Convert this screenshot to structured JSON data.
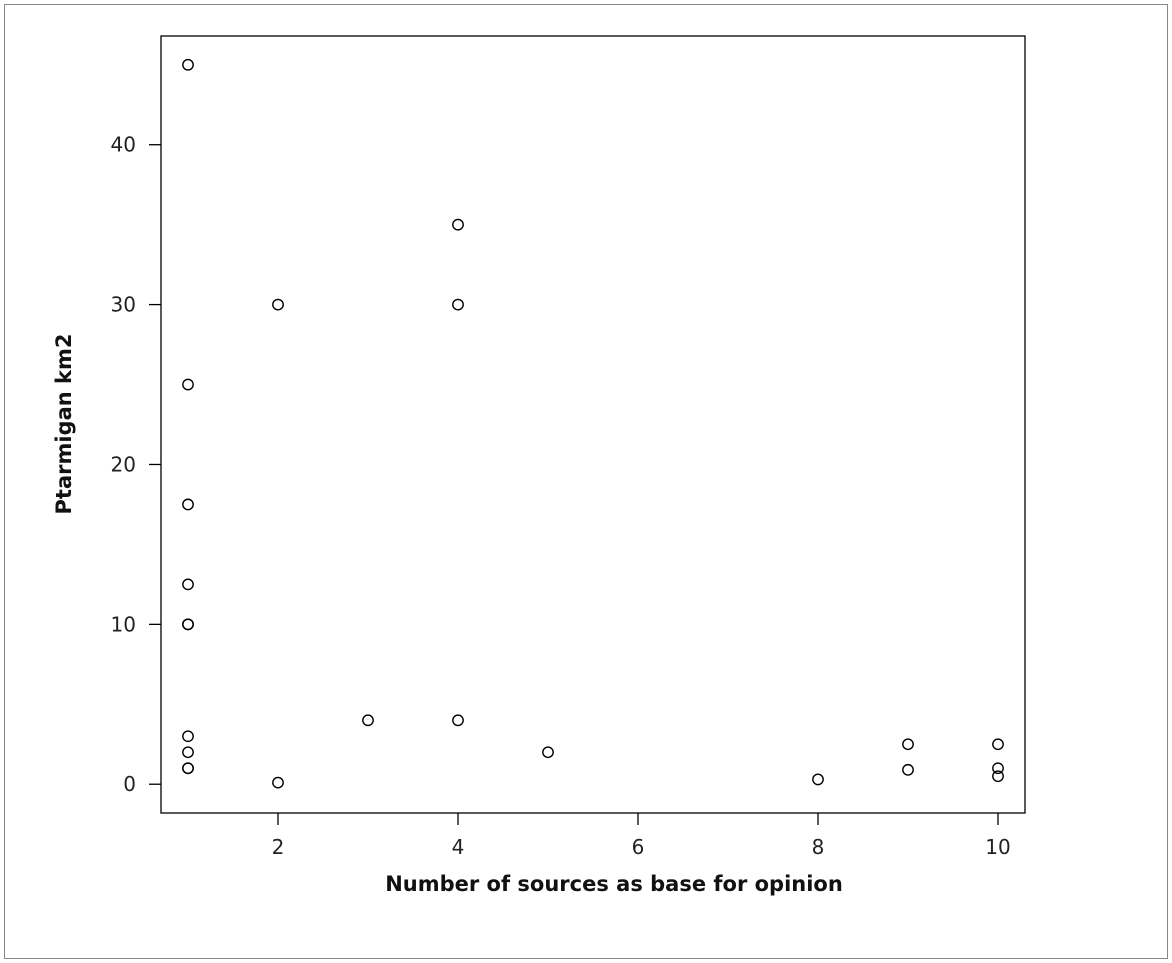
{
  "chart_data": {
    "type": "scatter",
    "title": "",
    "xlabel": "Number of sources as base for opinion",
    "ylabel": "Ptarmigan km2",
    "xlim": [
      0.7,
      10.3
    ],
    "ylim": [
      -1.8,
      46.8
    ],
    "xticks": [
      2,
      4,
      6,
      8,
      10
    ],
    "yticks": [
      0,
      10,
      20,
      30,
      40
    ],
    "grid": false,
    "legend": "none",
    "points": [
      {
        "x": 1,
        "y": 45
      },
      {
        "x": 1,
        "y": 25
      },
      {
        "x": 1,
        "y": 17.5
      },
      {
        "x": 1,
        "y": 12.5
      },
      {
        "x": 1,
        "y": 10
      },
      {
        "x": 1,
        "y": 10
      },
      {
        "x": 1,
        "y": 3
      },
      {
        "x": 1,
        "y": 2
      },
      {
        "x": 1,
        "y": 1
      },
      {
        "x": 1,
        "y": 1
      },
      {
        "x": 2,
        "y": 30
      },
      {
        "x": 2,
        "y": 0.1
      },
      {
        "x": 3,
        "y": 4
      },
      {
        "x": 4,
        "y": 35
      },
      {
        "x": 4,
        "y": 30
      },
      {
        "x": 4,
        "y": 4
      },
      {
        "x": 5,
        "y": 2
      },
      {
        "x": 8,
        "y": 0.3
      },
      {
        "x": 9,
        "y": 2.5
      },
      {
        "x": 9,
        "y": 0.9
      },
      {
        "x": 10,
        "y": 2.5
      },
      {
        "x": 10,
        "y": 1
      },
      {
        "x": 10,
        "y": 0.5
      }
    ],
    "marker": "open-circle",
    "marker_color": "#000000"
  }
}
